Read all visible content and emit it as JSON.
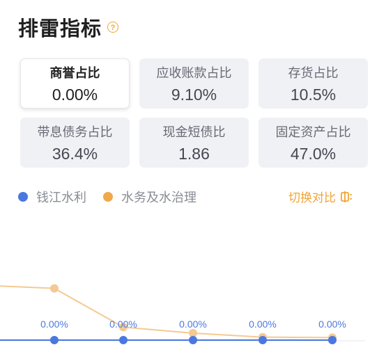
{
  "header": {
    "title": "排雷指标",
    "help_icon": "question-circle-icon",
    "help_glyph": "?"
  },
  "metrics": [
    {
      "label": "商誉占比",
      "value": "0.00%",
      "active": true
    },
    {
      "label": "应收账款占比",
      "value": "9.10%",
      "active": false
    },
    {
      "label": "存货占比",
      "value": "10.5%",
      "active": false
    },
    {
      "label": "带息债务占比",
      "value": "36.4%",
      "active": false
    },
    {
      "label": "现金短债比",
      "value": "1.86",
      "active": false
    },
    {
      "label": "固定资产占比",
      "value": "47.0%",
      "active": false
    }
  ],
  "legend": [
    {
      "label": "钱江水利",
      "color": "#4a78e0"
    },
    {
      "label": "水务及水治理",
      "color": "#f0a84a"
    }
  ],
  "switch": {
    "label": "切换对比",
    "icon": "switch-compare-icon"
  },
  "colors": {
    "accent": "#f0a535",
    "primary_series": "#4a78e0",
    "industry_series": "#f5c992"
  },
  "chart_data": {
    "type": "line",
    "series": [
      {
        "name": "钱江水利",
        "values": [
          0.0,
          0.0,
          0.0,
          0.0,
          0.0,
          0.0
        ],
        "labels": [
          "",
          "0.00%",
          "0.00%",
          "0.00%",
          "0.00%",
          "0.00%"
        ]
      },
      {
        "name": "水务及水治理",
        "values": [
          0.55,
          0.52,
          0.13,
          0.07,
          0.03,
          0.025
        ]
      }
    ]
  }
}
